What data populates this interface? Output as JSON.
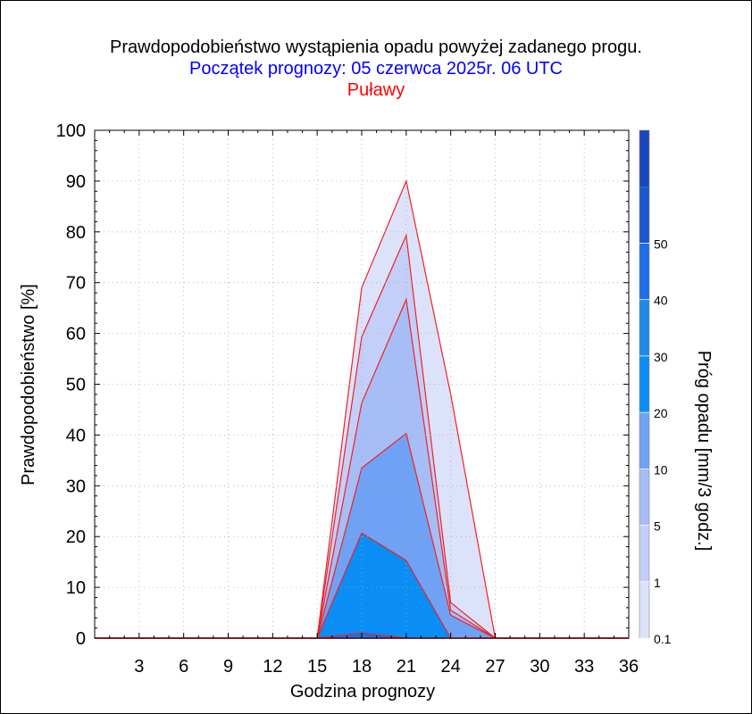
{
  "header": {
    "title": "Prawdopodobieństwo wystąpienia opadu powyżej zadanego progu.",
    "subtitle": "Początek prognozy: 05 czerwca 2025r. 06 UTC",
    "location": "Puławy"
  },
  "colors": {
    "title": "#000000",
    "subtitle": "#0000ff",
    "location": "#ff0000",
    "series_line": "#ee2222"
  },
  "chart_data": {
    "type": "area",
    "xlabel": "Godzina prognozy",
    "ylabel": "Prawdopodobieństwo [%]",
    "colorbar_label": "Próg opadu [mm/3 godz.]",
    "xlim": [
      0,
      36
    ],
    "ylim": [
      0,
      100
    ],
    "xticks": [
      3,
      6,
      9,
      12,
      15,
      18,
      21,
      24,
      27,
      30,
      33,
      36
    ],
    "yticks": [
      0,
      10,
      20,
      30,
      40,
      50,
      60,
      70,
      80,
      90,
      100
    ],
    "grid": true,
    "x": [
      0,
      3,
      6,
      9,
      12,
      15,
      18,
      21,
      24,
      27,
      30,
      33,
      36
    ],
    "series": [
      {
        "threshold": 0.1,
        "color": "#dde2fb",
        "values": [
          0,
          0,
          0,
          0,
          0,
          0,
          69,
          90,
          48,
          0,
          0,
          0,
          0
        ]
      },
      {
        "threshold": 1,
        "color": "#c3cff9",
        "values": [
          0,
          0,
          0,
          0,
          0,
          0,
          59.3,
          79.3,
          7,
          0,
          0,
          0,
          0
        ]
      },
      {
        "threshold": 5,
        "color": "#a7bdf6",
        "values": [
          0,
          0,
          0,
          0,
          0,
          0,
          46.3,
          66.7,
          5.5,
          0,
          0,
          0,
          0
        ]
      },
      {
        "threshold": 10,
        "color": "#6fa2f4",
        "values": [
          0,
          0,
          0,
          0,
          0,
          0,
          33.5,
          40.3,
          4.5,
          0,
          0,
          0,
          0
        ]
      },
      {
        "threshold": 20,
        "color": "#0a8ef5",
        "values": [
          0,
          0,
          0,
          0,
          0,
          0,
          20.7,
          15.3,
          0,
          0,
          0,
          0,
          0
        ]
      },
      {
        "threshold": 30,
        "color": "#1f6ee6",
        "values": [
          0,
          0,
          0,
          0,
          0,
          0,
          1,
          0,
          0,
          0,
          0,
          0,
          0
        ]
      }
    ],
    "colorbar": {
      "tick_labels": [
        "0.1",
        "1",
        "5",
        "10",
        "20",
        "30",
        "40",
        "50"
      ],
      "bands": [
        "#dde2fb",
        "#c3cff9",
        "#a7bdf6",
        "#6fa2f4",
        "#0a8ef5",
        "#1f8ae8",
        "#1f6ee6",
        "#1a58d0",
        "#1848bb"
      ]
    }
  }
}
